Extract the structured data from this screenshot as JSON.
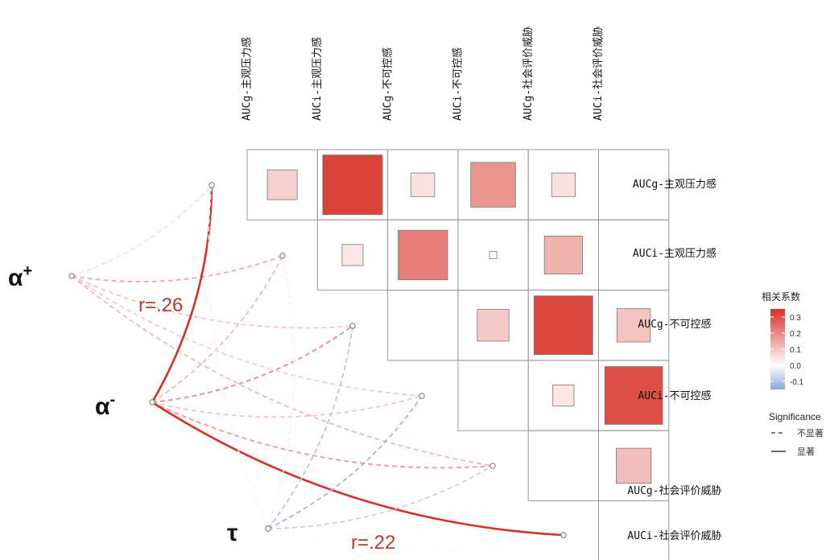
{
  "chart_data": {
    "type": "heatmap",
    "variables": [
      "AUCg-主观压力感",
      "AUCi-主观压力感",
      "AUCg-不可控感",
      "AUCi-不可控感",
      "AUCg-社会评价威胁",
      "AUCi-社会评价威胁"
    ],
    "matrix": [
      {
        "row": "AUCg-主观压力感",
        "col": "AUCg-主观压力感",
        "r": 0.08
      },
      {
        "row": "AUCg-主观压力感",
        "col": "AUCi-主观压力感",
        "r": 0.32
      },
      {
        "row": "AUCg-主观压力感",
        "col": "AUCg-不可控感",
        "r": 0.05
      },
      {
        "row": "AUCg-主观压力感",
        "col": "AUCi-不可控感",
        "r": 0.18
      },
      {
        "row": "AUCg-主观压力感",
        "col": "AUCg-社会评价威胁",
        "r": 0.05
      },
      {
        "row": "AUCi-主观压力感",
        "col": "AUCi-主观压力感",
        "r": 0.04
      },
      {
        "row": "AUCi-主观压力感",
        "col": "AUCg-不可控感",
        "r": 0.22
      },
      {
        "row": "AUCi-主观压力感",
        "col": "AUCi-不可控感",
        "r": 0.0
      },
      {
        "row": "AUCi-主观压力感",
        "col": "AUCg-社会评价威胁",
        "r": 0.13
      },
      {
        "row": "AUCg-不可控感",
        "col": "AUCi-不可控感",
        "r": 0.09
      },
      {
        "row": "AUCg-不可控感",
        "col": "AUCg-社会评价威胁",
        "r": 0.31
      },
      {
        "row": "AUCg-不可控感",
        "col": "AUCi-社会评价威胁",
        "r": 0.1
      },
      {
        "row": "AUCi-不可控感",
        "col": "AUCg-社会评价威胁",
        "r": 0.04
      },
      {
        "row": "AUCi-不可控感",
        "col": "AUCi-社会评价威胁",
        "r": 0.3
      },
      {
        "row": "AUCg-社会评价威胁",
        "col": "AUCi-社会评价威胁",
        "r": 0.11
      }
    ],
    "links": [
      {
        "from": "α⁺",
        "to": "AUCg-主观压力感",
        "r": 0.06,
        "significant": false
      },
      {
        "from": "α⁺",
        "to": "AUCi-主观压力感",
        "r": 0.14,
        "significant": false
      },
      {
        "from": "α⁺",
        "to": "AUCg-不可控感",
        "r": 0.1,
        "significant": false
      },
      {
        "from": "α⁺",
        "to": "AUCi-不可控感",
        "r": 0.09,
        "significant": false
      },
      {
        "from": "α⁺",
        "to": "AUCg-社会评价威胁",
        "r": 0.12,
        "significant": false
      },
      {
        "from": "α⁻",
        "to": "AUCg-主观压力感",
        "r": 0.26,
        "significant": true
      },
      {
        "from": "α⁻",
        "to": "AUCi-主观压力感",
        "r": 0.12,
        "significant": false
      },
      {
        "from": "α⁻",
        "to": "AUCg-不可控感",
        "r": 0.18,
        "significant": false
      },
      {
        "from": "α⁻",
        "to": "AUCi-不可控感",
        "r": 0.1,
        "significant": false
      },
      {
        "from": "α⁻",
        "to": "AUCg-社会评价威胁",
        "r": 0.16,
        "significant": false
      },
      {
        "from": "α⁻",
        "to": "AUCi-社会评价威胁",
        "r": 0.22,
        "significant": true
      },
      {
        "from": "τ",
        "to": "AUCg-主观压力感",
        "r": 0.02,
        "significant": false
      },
      {
        "from": "τ",
        "to": "AUCi-主观压力感",
        "r": -0.02,
        "significant": false
      },
      {
        "from": "τ",
        "to": "AUCg-不可控感",
        "r": -0.1,
        "significant": false
      },
      {
        "from": "τ",
        "to": "AUCi-不可控感",
        "r": -0.12,
        "significant": false
      },
      {
        "from": "τ",
        "to": "AUCg-社会评价威胁",
        "r": -0.08,
        "significant": false
      },
      {
        "from": "τ",
        "to": "AUCi-社会评价威胁",
        "r": 0.01,
        "significant": false
      }
    ],
    "predictors": [
      "α",
      "α",
      "τ"
    ],
    "predictor_superscripts": [
      "+",
      "-",
      ""
    ],
    "annotations": [
      "r=.26",
      "r=.22"
    ],
    "legend": {
      "color_title": "相关系数",
      "color_ticks": [
        "0.3",
        "0.2",
        "0.1",
        "0.0",
        "-0.1"
      ],
      "color_tick_values": [
        0.3,
        0.2,
        0.1,
        0.0,
        -0.1
      ],
      "color_range": [
        -0.15,
        0.35
      ],
      "significance_title": "Significance",
      "significance_labels": [
        "不显著",
        "显著"
      ],
      "placement": "right"
    },
    "colors": {
      "positive": "#d73027",
      "neutral": "#ffffff",
      "negative": "#8aa5d8",
      "annotation": "#c0392b",
      "grid": "#999999"
    }
  }
}
